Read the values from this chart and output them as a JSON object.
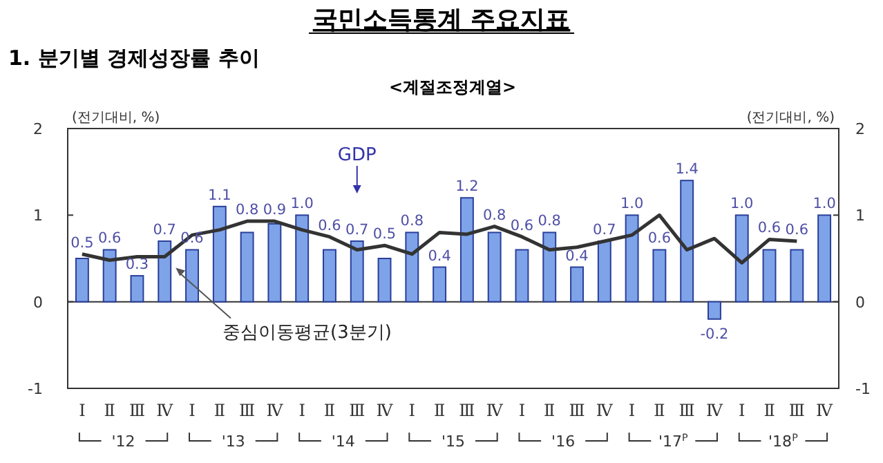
{
  "chart_data": {
    "type": "bar",
    "title": "국민소득통계 주요지표",
    "subtitle": "1. 분기별 경제성장률 추이",
    "annotations": [
      "<계절조정계열>",
      "'12",
      "'13",
      "'14",
      "'15",
      "'16",
      "'17$^{P}$",
      "'18$^{P}$"
    ],
    "ylabel": "(전기대비, %)",
    "y2label": "(전기대비, %)",
    "categories": [
      "Ⅰ",
      "Ⅱ",
      "Ⅲ",
      "Ⅳ",
      "Ⅰ",
      "Ⅱ",
      "Ⅲ",
      "Ⅳ",
      "Ⅰ",
      "Ⅱ",
      "Ⅲ",
      "Ⅳ",
      "Ⅰ",
      "Ⅱ",
      "Ⅲ",
      "Ⅳ",
      "Ⅰ",
      "Ⅱ",
      "Ⅲ",
      "Ⅳ",
      "Ⅰ",
      "Ⅱ",
      "Ⅲ",
      "Ⅳ",
      "Ⅰ",
      "Ⅱ",
      "Ⅲ",
      "Ⅳ"
    ],
    "series": [
      {
        "name": "GDP",
        "color": "#7fa3e8",
        "values": [
          0.5,
          0.6,
          0.3,
          0.7,
          0.6,
          1.1,
          0.8,
          0.9,
          1.0,
          0.6,
          0.7,
          0.5,
          0.8,
          0.4,
          1.2,
          0.8,
          0.6,
          0.8,
          0.4,
          0.7,
          1.0,
          0.6,
          1.4,
          -0.2,
          1.0,
          0.6,
          0.6,
          1.0
        ],
        "value_labels": [
          "0.5",
          "0.6",
          "0.3",
          "0.7",
          "0.6",
          "1.1",
          "0.8",
          "0.9",
          "1.0",
          "0.6",
          "0.7",
          "0.5",
          "0.8",
          "0.4",
          "1.2",
          "0.8",
          "0.6",
          "0.8",
          "0.4",
          "0.7",
          "1.0",
          "0.6",
          "1.4",
          "-0.2",
          "1.0",
          "0.6",
          "0.6",
          "1.0"
        ]
      },
      {
        "name": "중심이동평균(3분기)",
        "type": "line",
        "color": "#333333",
        "values": [
          0.55,
          0.48,
          0.52,
          0.52,
          0.77,
          0.83,
          0.93,
          0.93,
          0.83,
          0.75,
          0.6,
          0.65,
          0.55,
          0.8,
          0.78,
          0.87,
          0.75,
          0.6,
          0.63,
          0.7,
          0.77,
          1.0,
          0.6,
          0.73,
          0.45,
          0.72,
          0.7,
          null
        ]
      }
    ],
    "ylim": [
      -1,
      2
    ],
    "yticks": [
      -1,
      0,
      1,
      2
    ],
    "y2lim": [
      -1,
      2
    ],
    "y2ticks": [
      -1,
      0,
      1,
      2
    ]
  }
}
